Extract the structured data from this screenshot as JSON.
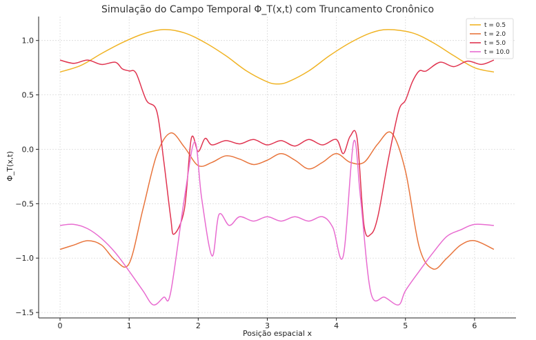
{
  "chart_data": {
    "type": "line",
    "title": "Simulação do Campo Temporal Φ_T(x,t) com Truncamento Cronônico",
    "xlabel": "Posição espacial x",
    "ylabel": "Φ_T(x,t)",
    "xlim": [
      -0.31,
      6.6
    ],
    "ylim": [
      -1.55,
      1.22
    ],
    "xticks": [
      0,
      1,
      2,
      3,
      4,
      5,
      6
    ],
    "yticks": [
      1.0,
      0.5,
      0.0,
      -0.5,
      -1.0,
      -1.5
    ],
    "xtick_labels": [
      "0",
      "1",
      "2",
      "3",
      "4",
      "5",
      "6"
    ],
    "ytick_labels": [
      "1.0",
      "0.5",
      "0.0",
      "−0.5",
      "−1.0",
      "−1.5"
    ],
    "grid": true,
    "legend_position": "top-right",
    "series": [
      {
        "name": "t = 0.5",
        "color": "#f0b323",
        "x": [
          0,
          0.3,
          0.6,
          0.9,
          1.2,
          1.5,
          1.8,
          2.1,
          2.4,
          2.7,
          3.0,
          3.15,
          3.3,
          3.6,
          3.9,
          4.2,
          4.5,
          4.75,
          5.1,
          5.4,
          5.7,
          6.0,
          6.28
        ],
        "values": [
          0.71,
          0.77,
          0.88,
          0.98,
          1.06,
          1.1,
          1.07,
          0.98,
          0.86,
          0.72,
          0.62,
          0.6,
          0.62,
          0.72,
          0.86,
          0.98,
          1.07,
          1.1,
          1.07,
          0.98,
          0.86,
          0.75,
          0.71
        ]
      },
      {
        "name": "t = 2.0",
        "color": "#e8743b",
        "x": [
          0,
          0.2,
          0.4,
          0.6,
          0.8,
          1.0,
          1.2,
          1.4,
          1.6,
          1.8,
          2.0,
          2.2,
          2.4,
          2.6,
          2.8,
          3.0,
          3.2,
          3.4,
          3.6,
          3.8,
          4.0,
          4.2,
          4.4,
          4.6,
          4.8,
          5.0,
          5.2,
          5.4,
          5.6,
          5.8,
          6.0,
          6.28
        ],
        "values": [
          -0.92,
          -0.88,
          -0.84,
          -0.88,
          -1.02,
          -1.05,
          -0.55,
          -0.05,
          0.15,
          0.02,
          -0.15,
          -0.12,
          -0.06,
          -0.09,
          -0.14,
          -0.1,
          -0.04,
          -0.1,
          -0.18,
          -0.12,
          -0.04,
          -0.12,
          -0.12,
          0.05,
          0.15,
          -0.2,
          -0.9,
          -1.1,
          -1.0,
          -0.88,
          -0.84,
          -0.92
        ]
      },
      {
        "name": "t = 5.0",
        "color": "#e0334f",
        "x": [
          0,
          0.2,
          0.4,
          0.6,
          0.8,
          0.9,
          1.0,
          1.1,
          1.25,
          1.4,
          1.5,
          1.6,
          1.65,
          1.8,
          1.9,
          2.0,
          2.1,
          2.2,
          2.4,
          2.6,
          2.8,
          3.0,
          3.2,
          3.4,
          3.6,
          3.8,
          4.0,
          4.1,
          4.2,
          4.3,
          4.4,
          4.5,
          4.6,
          4.75,
          4.9,
          5.0,
          5.1,
          5.2,
          5.3,
          5.5,
          5.7,
          5.9,
          6.1,
          6.28
        ],
        "values": [
          0.82,
          0.79,
          0.82,
          0.78,
          0.8,
          0.74,
          0.72,
          0.7,
          0.45,
          0.35,
          -0.1,
          -0.62,
          -0.78,
          -0.55,
          0.1,
          -0.02,
          0.1,
          0.04,
          0.08,
          0.05,
          0.09,
          0.04,
          0.08,
          0.03,
          0.09,
          0.04,
          0.09,
          -0.04,
          0.12,
          0.1,
          -0.7,
          -0.78,
          -0.62,
          -0.1,
          0.35,
          0.45,
          0.62,
          0.72,
          0.72,
          0.8,
          0.76,
          0.81,
          0.78,
          0.82
        ]
      },
      {
        "name": "t = 10.0",
        "color": "#e86bd0",
        "x": [
          0,
          0.2,
          0.4,
          0.6,
          0.8,
          1.0,
          1.2,
          1.35,
          1.5,
          1.6,
          1.8,
          1.95,
          2.05,
          2.2,
          2.3,
          2.45,
          2.6,
          2.8,
          3.0,
          3.2,
          3.4,
          3.6,
          3.8,
          3.95,
          4.1,
          4.25,
          4.35,
          4.5,
          4.7,
          4.9,
          5.0,
          5.2,
          5.4,
          5.6,
          5.8,
          6.0,
          6.28
        ],
        "values": [
          -0.7,
          -0.69,
          -0.73,
          -0.82,
          -0.95,
          -1.12,
          -1.3,
          -1.43,
          -1.36,
          -1.32,
          -0.45,
          0.07,
          -0.45,
          -0.98,
          -0.6,
          -0.7,
          -0.62,
          -0.66,
          -0.62,
          -0.66,
          -0.62,
          -0.66,
          -0.62,
          -0.72,
          -0.98,
          0.07,
          -0.45,
          -1.32,
          -1.36,
          -1.43,
          -1.3,
          -1.12,
          -0.95,
          -0.8,
          -0.74,
          -0.69,
          -0.7
        ]
      }
    ]
  }
}
